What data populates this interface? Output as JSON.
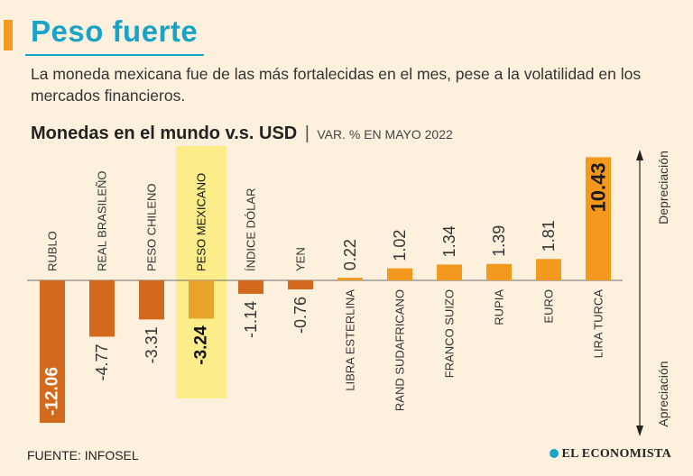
{
  "header": {
    "title": "Peso fuerte",
    "subtitle": "La moneda mexicana fue de las más fortalecidas en el mes, pese a la volatilidad en los mercados financieros.",
    "chart_title": "Monedas en el mundo v.s. USD",
    "separator": "|",
    "chart_subtitle": "VAR. % EN MAYO 2022"
  },
  "footer": {
    "source": "FUENTE: INFOSEL",
    "logo": "EL ECONOMISTA"
  },
  "colors": {
    "accent": "#f39a1e",
    "title": "#1aa3c7",
    "bar_negative": "#d2691c",
    "bar_positive": "#f39a1e",
    "highlight_band": "#fdec8a",
    "highlight_bar": "#e8a32a",
    "text": "#333333"
  },
  "chart_data": {
    "type": "bar",
    "title": "Monedas en el mundo v.s. USD",
    "subtitle": "VAR. % EN MAYO 2022",
    "categories": [
      "RUBLO",
      "REAL BRASILEÑO",
      "PESO CHILENO",
      "PESO MEXICANO",
      "ÍNDICE DÓLAR",
      "YEN",
      "LIBRA ESTERLINA",
      "RAND SUDAFRICANO",
      "FRANCO SUIZO",
      "RUPIA",
      "EURO",
      "LIRA TURCA"
    ],
    "values": [
      -12.06,
      -4.77,
      -3.31,
      -3.24,
      -1.14,
      -0.76,
      0.22,
      1.02,
      1.34,
      1.39,
      1.81,
      10.43
    ],
    "value_labels": [
      "-12.06",
      "-4.77",
      "-3.31",
      "-3.24",
      "-1.14",
      "-0.76",
      "0.22",
      "1.02",
      "1.34",
      "1.39",
      "1.81",
      "10.43"
    ],
    "highlight": "PESO MEXICANO",
    "ylim": [
      -12.06,
      10.43
    ],
    "axis_labels": {
      "up": "Depreciación",
      "down": "Apreciación"
    }
  }
}
